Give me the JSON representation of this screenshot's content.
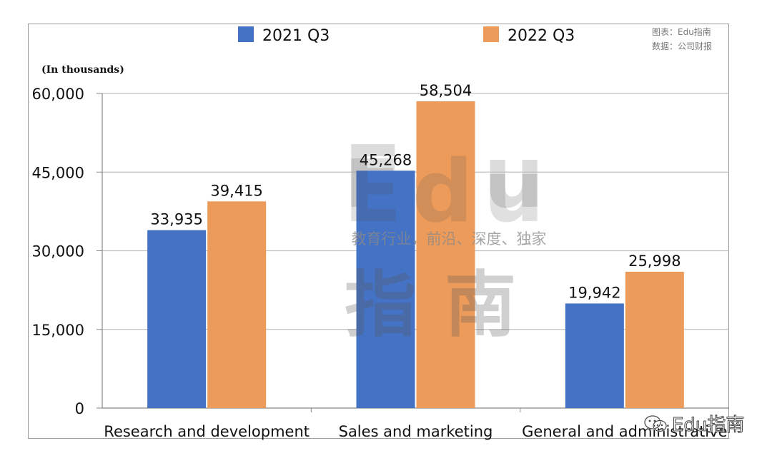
{
  "source_note": {
    "line1": "图表：Edu指南",
    "line2": "数据：公司财报"
  },
  "footer_tag": "Edu指南",
  "watermark": {
    "mark_top": "Edu",
    "mark_bottom": "指南",
    "slogan": "教育行业，前沿、深度、独家"
  },
  "colors": {
    "series_2021": "#4472c4",
    "series_2022": "#ed9b5a",
    "grid": "#bfbfbf",
    "axis": "#888888"
  },
  "chart_data": {
    "type": "bar",
    "unit_note": "(In thousands)",
    "categories": [
      "Research and development",
      "Sales and marketing",
      "General and administrative"
    ],
    "series": [
      {
        "name": "2021 Q3",
        "values": [
          33935,
          45268,
          19942
        ]
      },
      {
        "name": "2022 Q3",
        "values": [
          39415,
          58504,
          25998
        ]
      }
    ],
    "ylim": [
      0,
      60000
    ],
    "yticks": [
      0,
      15000,
      30000,
      45000,
      60000
    ],
    "ytick_labels": [
      "0",
      "15,000",
      "30,000",
      "45,000",
      "60,000"
    ],
    "data_labels": [
      [
        "33,935",
        "45,268",
        "19,942"
      ],
      [
        "39,415",
        "58,504",
        "25,998"
      ]
    ],
    "grid": true,
    "legend": "top-center"
  }
}
